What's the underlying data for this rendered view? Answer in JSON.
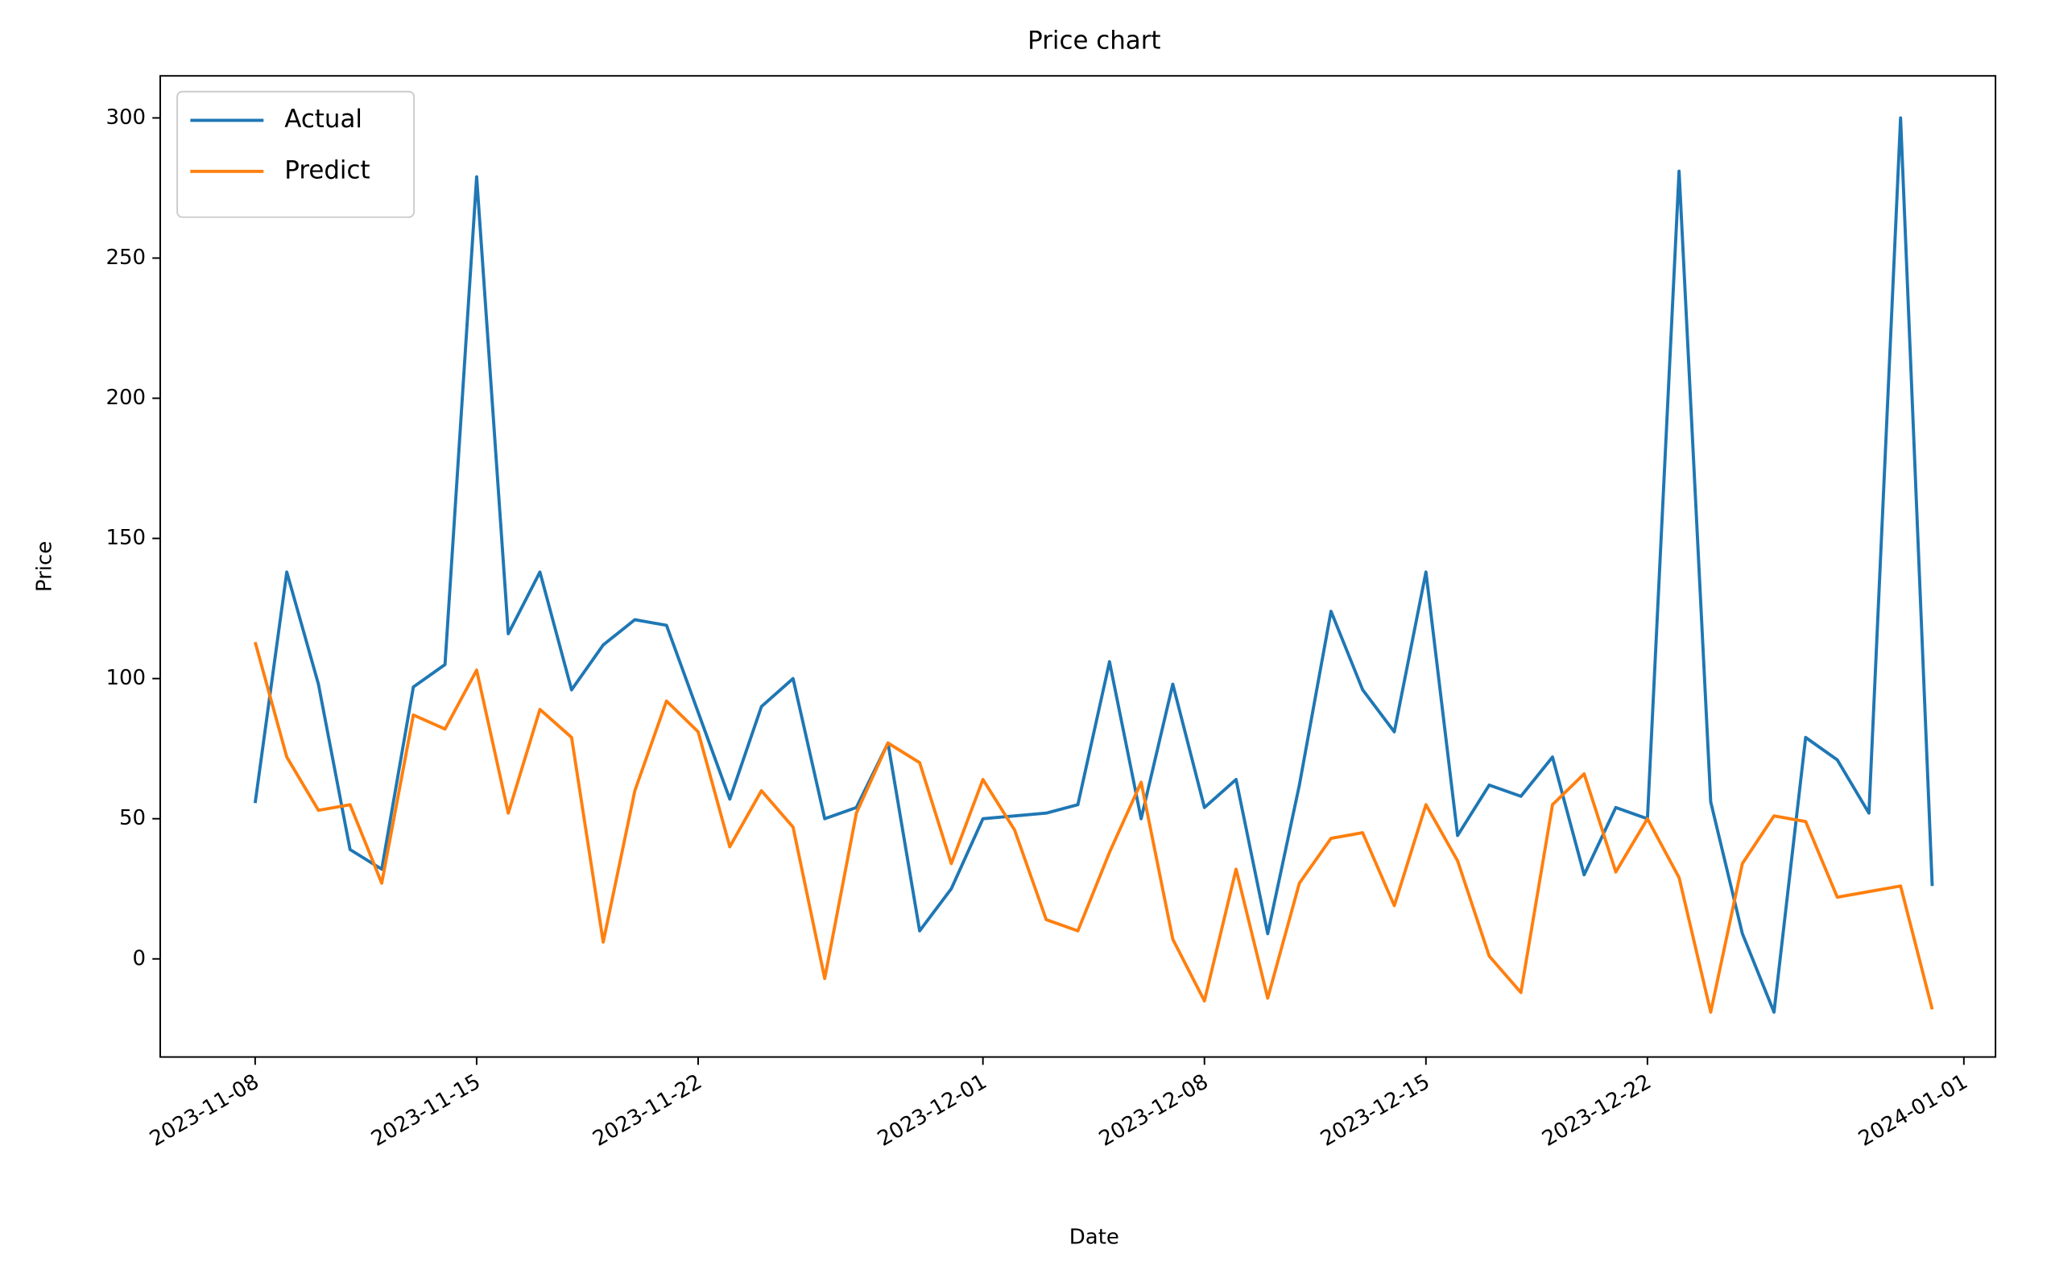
{
  "chart_data": {
    "type": "line",
    "title": "Price chart",
    "x_label": "Date",
    "y_label": "Price",
    "x": [
      "2023-11-08",
      "2023-11-09",
      "2023-11-10",
      "2023-11-11",
      "2023-11-12",
      "2023-11-13",
      "2023-11-14",
      "2023-11-15",
      "2023-11-16",
      "2023-11-17",
      "2023-11-18",
      "2023-11-19",
      "2023-11-20",
      "2023-11-21",
      "2023-11-22",
      "2023-11-23",
      "2023-11-24",
      "2023-11-25",
      "2023-11-26",
      "2023-11-27",
      "2023-11-28",
      "2023-11-29",
      "2023-11-30",
      "2023-12-01",
      "2023-12-02",
      "2023-12-03",
      "2023-12-04",
      "2023-12-05",
      "2023-12-06",
      "2023-12-07",
      "2023-12-08",
      "2023-12-09",
      "2023-12-10",
      "2023-12-11",
      "2023-12-12",
      "2023-12-13",
      "2023-12-14",
      "2023-12-15",
      "2023-12-16",
      "2023-12-17",
      "2023-12-18",
      "2023-12-19",
      "2023-12-20",
      "2023-12-21",
      "2023-12-22",
      "2023-12-23",
      "2023-12-24",
      "2023-12-25",
      "2023-12-26",
      "2023-12-27",
      "2023-12-28",
      "2023-12-29",
      "2023-12-30",
      "2023-12-31"
    ],
    "series": [
      {
        "name": "Actual",
        "color": "#1f77b4",
        "values": [
          55.6,
          138,
          98,
          39,
          32,
          97,
          105,
          279,
          116,
          138,
          96,
          112,
          121,
          119,
          88,
          57,
          90,
          100,
          50,
          54,
          77,
          10,
          25,
          50,
          51,
          52,
          55,
          106,
          50,
          98,
          54,
          64,
          9,
          62,
          124,
          96,
          81,
          138,
          44,
          62,
          58,
          72,
          30,
          54,
          50,
          281,
          56,
          9,
          -19,
          79,
          71,
          52,
          300,
          26
        ]
      },
      {
        "name": "Predict",
        "color": "#ff7f0e",
        "values": [
          113,
          72,
          53,
          55,
          27,
          87,
          82,
          103,
          52,
          89,
          79,
          6,
          60,
          92,
          81,
          40,
          60,
          47,
          -7,
          52,
          77,
          70,
          34,
          64,
          46,
          14,
          10,
          38,
          63,
          7,
          -15,
          32,
          -14,
          27,
          43,
          45,
          19,
          55,
          35,
          1,
          -12,
          55,
          66,
          31,
          50,
          29,
          -19,
          34,
          51,
          49,
          22,
          24,
          26,
          -18
        ]
      }
    ],
    "xlim": [
      "2023-11-05",
      "2024-01-02"
    ],
    "xticks": [
      "2023-11-08",
      "2023-11-15",
      "2023-11-22",
      "2023-12-01",
      "2023-12-08",
      "2023-12-15",
      "2023-12-22",
      "2024-01-01"
    ],
    "ylim": [
      -35,
      315
    ],
    "yticks": [
      0,
      50,
      100,
      150,
      200,
      250,
      300
    ],
    "grid": false,
    "legend": "upper left"
  }
}
